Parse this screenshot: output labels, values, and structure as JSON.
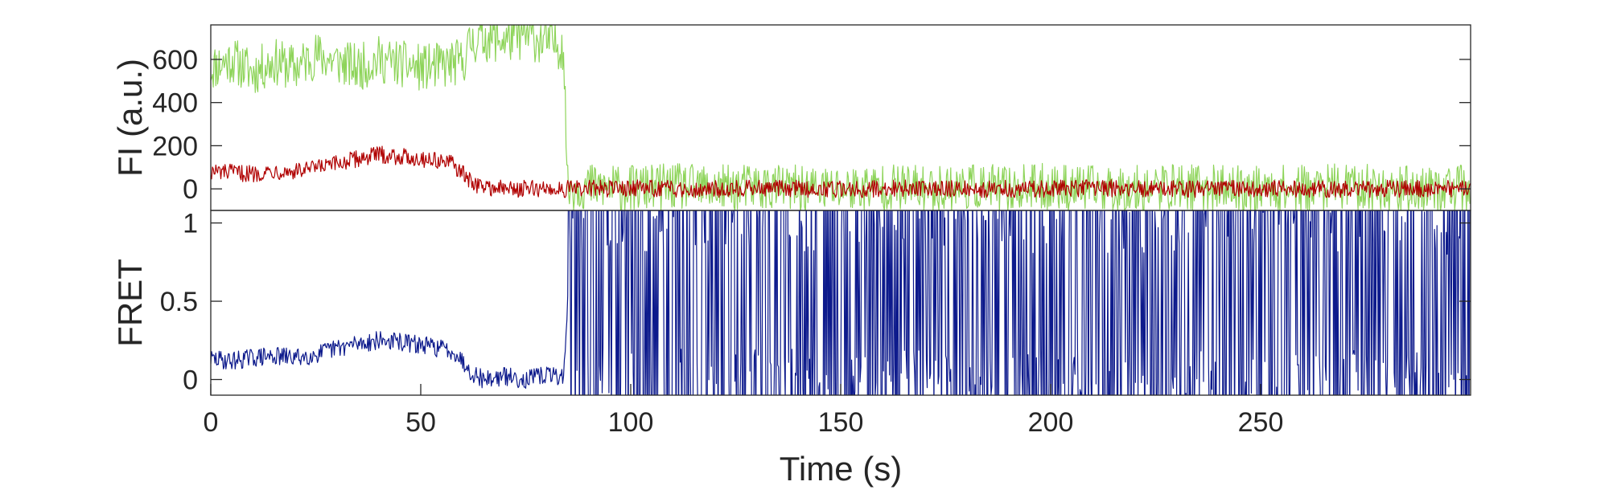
{
  "chart_data": [
    {
      "type": "line",
      "panel": "top",
      "title": "",
      "xlabel": "",
      "ylabel": "FI (a.u.)",
      "xlim": [
        0,
        300
      ],
      "ylim": [
        -100,
        760
      ],
      "yticks": [
        0,
        200,
        400,
        600
      ],
      "ytick_labels": [
        "0",
        "200",
        "400",
        "600"
      ],
      "grid": false,
      "legend": "none",
      "series": [
        {
          "color": "#8ed45a",
          "x": [
            0,
            5,
            10,
            15,
            20,
            25,
            30,
            35,
            40,
            45,
            50,
            55,
            60,
            62,
            65,
            70,
            75,
            80,
            84,
            85,
            86,
            90,
            100,
            110,
            120,
            130,
            140,
            150,
            160,
            170,
            180,
            190,
            200,
            210,
            220,
            230,
            240,
            250,
            260,
            270,
            280,
            290,
            300
          ],
          "y": [
            560,
            600,
            540,
            590,
            560,
            620,
            590,
            560,
            600,
            580,
            560,
            570,
            590,
            680,
            700,
            690,
            710,
            680,
            660,
            0,
            10,
            10,
            0,
            10,
            0,
            10,
            0,
            0,
            10,
            0,
            10,
            0,
            10,
            0,
            0,
            10,
            0,
            0,
            0,
            10,
            0,
            0,
            0
          ],
          "noise": 110
        },
        {
          "color": "#b00000",
          "x": [
            0,
            5,
            10,
            15,
            20,
            25,
            30,
            35,
            40,
            45,
            50,
            55,
            58,
            62,
            65,
            70,
            75,
            80,
            85,
            90,
            100,
            110,
            120,
            130,
            140,
            150,
            160,
            170,
            180,
            190,
            200,
            210,
            220,
            230,
            240,
            250,
            260,
            270,
            280,
            290,
            300
          ],
          "y": [
            80,
            75,
            70,
            85,
            80,
            95,
            115,
            140,
            160,
            150,
            140,
            130,
            110,
            30,
            10,
            0,
            0,
            0,
            0,
            0,
            5,
            0,
            0,
            5,
            0,
            0,
            0,
            5,
            0,
            0,
            0,
            5,
            0,
            0,
            0,
            0,
            0,
            0,
            0,
            0,
            0
          ],
          "noise": 40
        }
      ]
    },
    {
      "type": "line",
      "panel": "bottom",
      "title": "",
      "xlabel": "Time (s)",
      "ylabel": "FRET",
      "xlim": [
        0,
        300
      ],
      "ylim": [
        -0.1,
        1.08
      ],
      "xticks": [
        0,
        50,
        100,
        150,
        200,
        250
      ],
      "xtick_labels": [
        "0",
        "50",
        "100",
        "150",
        "200",
        "250"
      ],
      "yticks": [
        0,
        0.5,
        1
      ],
      "ytick_labels": [
        "0",
        "0.5",
        "1"
      ],
      "grid": false,
      "legend": "none",
      "series": [
        {
          "color": "#0d1a8c",
          "x": [
            0,
            5,
            10,
            15,
            20,
            25,
            30,
            35,
            40,
            45,
            50,
            55,
            58,
            62,
            65,
            70,
            75,
            80,
            84,
            85,
            90,
            100,
            110,
            120,
            130,
            140,
            150,
            160,
            170,
            180,
            190,
            200,
            210,
            220,
            230,
            240,
            250,
            260,
            270,
            280,
            290,
            300
          ],
          "y": [
            0.13,
            0.12,
            0.14,
            0.15,
            0.14,
            0.16,
            0.2,
            0.23,
            0.25,
            0.24,
            0.22,
            0.2,
            0.18,
            0.05,
            0.0,
            0.02,
            0.0,
            0.03,
            0.02,
            0.5,
            0.5,
            0.5,
            0.5,
            0.5,
            0.5,
            0.5,
            0.5,
            0.5,
            0.5,
            0.5,
            0.5,
            0.5,
            0.5,
            0.5,
            0.5,
            0.5,
            0.5,
            0.5,
            0.5,
            0.5,
            0.5,
            0.5
          ],
          "noise": 0.06
        }
      ]
    }
  ]
}
